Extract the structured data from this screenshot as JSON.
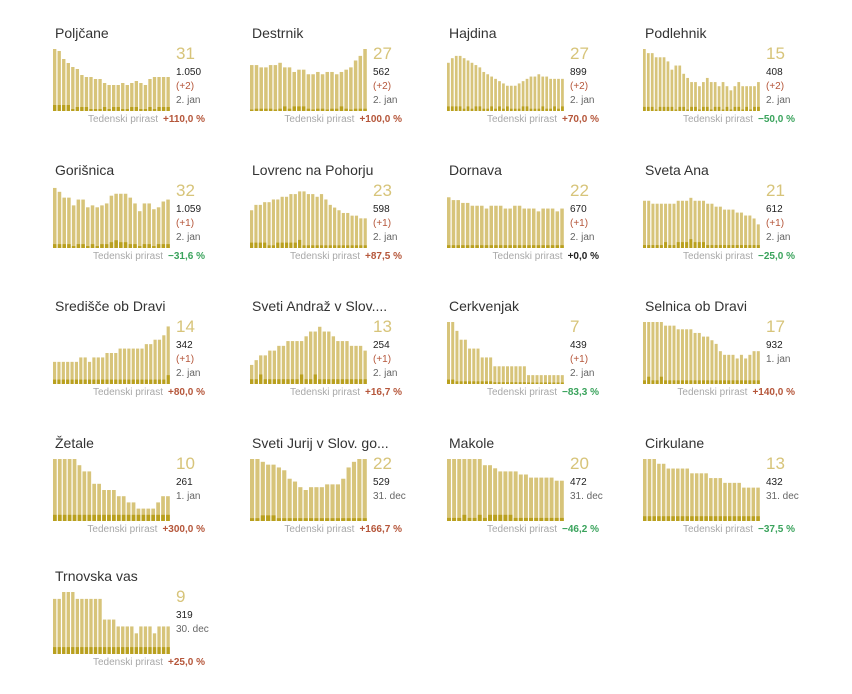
{
  "colors": {
    "bar": "#d7c47a",
    "bar_low": "#b9a01e",
    "big_number": "#d7c47a",
    "positive": "#b5563a",
    "negative": "#3aa35c"
  },
  "chart_data": [
    {
      "type": "bar",
      "title": "Poljčane",
      "value": "31",
      "total": "1.050",
      "diff": "(+2)",
      "date": "2. jan",
      "weekly_label": "Tedenski prirast",
      "weekly_change": "+110,0 %",
      "trend": "pos",
      "values": [
        31,
        30,
        26,
        24,
        22,
        21,
        18,
        17,
        17,
        16,
        16,
        14,
        13,
        13,
        13,
        14,
        13,
        14,
        15,
        14,
        13,
        16,
        17,
        17,
        17,
        17
      ],
      "low": [
        3,
        3,
        3,
        3,
        1,
        2,
        2,
        2,
        1,
        1,
        1,
        2,
        1,
        2,
        2,
        1,
        1,
        2,
        2,
        1,
        1,
        2,
        1,
        2,
        2,
        2
      ],
      "ylim": [
        0,
        31
      ]
    },
    {
      "type": "bar",
      "title": "Destrnik",
      "value": "27",
      "total": "562",
      "diff": "(+2)",
      "date": "2. jan",
      "weekly_label": "Tedenski prirast",
      "weekly_change": "+100,0 %",
      "trend": "pos",
      "values": [
        20,
        20,
        19,
        19,
        20,
        20,
        21,
        19,
        19,
        17,
        18,
        18,
        16,
        16,
        17,
        16,
        17,
        17,
        16,
        17,
        18,
        19,
        22,
        24,
        27
      ],
      "low": [
        0,
        1,
        1,
        1,
        1,
        0,
        1,
        2,
        1,
        2,
        2,
        2,
        1,
        0,
        1,
        1,
        0,
        1,
        1,
        2,
        1,
        0,
        1,
        1,
        1
      ],
      "ylim": [
        0,
        27
      ]
    },
    {
      "type": "bar",
      "title": "Hajdina",
      "value": "27",
      "total": "899",
      "diff": "(+2)",
      "date": "2. jan",
      "weekly_label": "Tedenski prirast",
      "weekly_change": "+70,0 %",
      "trend": "pos",
      "values": [
        21,
        23,
        24,
        24,
        23,
        22,
        21,
        20,
        19,
        17,
        16,
        15,
        14,
        13,
        12,
        11,
        11,
        11,
        12,
        13,
        14,
        15,
        15,
        16,
        15,
        15,
        14,
        14,
        14,
        14
      ],
      "low": [
        2,
        2,
        2,
        2,
        1,
        2,
        1,
        2,
        2,
        1,
        1,
        2,
        1,
        2,
        1,
        2,
        1,
        1,
        1,
        2,
        2,
        1,
        1,
        1,
        2,
        1,
        1,
        2,
        1,
        2
      ],
      "ylim": [
        0,
        27
      ]
    },
    {
      "type": "bar",
      "title": "Podlehnik",
      "value": "15",
      "total": "408",
      "diff": "(+2)",
      "date": "2. jan",
      "weekly_label": "Tedenski prirast",
      "weekly_change": "−50,0 %",
      "trend": "neg",
      "values": [
        15,
        14,
        14,
        13,
        13,
        13,
        12,
        10,
        11,
        11,
        9,
        8,
        7,
        7,
        6,
        7,
        8,
        7,
        7,
        6,
        7,
        6,
        5,
        6,
        7,
        6,
        6,
        6,
        6,
        7
      ],
      "low": [
        1,
        1,
        1,
        0,
        1,
        1,
        1,
        1,
        0,
        1,
        1,
        0,
        1,
        1,
        0,
        1,
        1,
        0,
        1,
        1,
        0,
        1,
        0,
        1,
        1,
        0,
        1,
        0,
        1,
        1
      ],
      "ylim": [
        0,
        15
      ]
    },
    {
      "type": "bar",
      "title": "Gorišnica",
      "value": "32",
      "total": "1.059",
      "diff": "(+1)",
      "date": "2. jan",
      "weekly_label": "Tedenski prirast",
      "weekly_change": "−31,6 %",
      "trend": "neg",
      "values": [
        31,
        29,
        26,
        26,
        22,
        25,
        25,
        21,
        22,
        21,
        22,
        23,
        27,
        28,
        28,
        28,
        26,
        23,
        19,
        23,
        23,
        20,
        21,
        24,
        25
      ],
      "low": [
        2,
        2,
        2,
        2,
        1,
        2,
        2,
        1,
        2,
        1,
        2,
        2,
        3,
        4,
        3,
        3,
        2,
        2,
        1,
        2,
        2,
        1,
        2,
        2,
        2
      ],
      "ylim": [
        0,
        32
      ]
    },
    {
      "type": "bar",
      "title": "Lovrenc na Pohorju",
      "value": "23",
      "total": "598",
      "diff": "(+1)",
      "date": "2. jan",
      "weekly_label": "Tedenski prirast",
      "weekly_change": "+87,5 %",
      "trend": "pos",
      "values": [
        14,
        16,
        16,
        17,
        17,
        18,
        18,
        19,
        19,
        20,
        20,
        21,
        21,
        20,
        20,
        19,
        20,
        18,
        16,
        15,
        14,
        13,
        13,
        12,
        12,
        11,
        11
      ],
      "low": [
        2,
        2,
        2,
        2,
        1,
        1,
        2,
        2,
        2,
        2,
        2,
        3,
        1,
        1,
        1,
        1,
        1,
        1,
        1,
        1,
        1,
        1,
        1,
        1,
        1,
        1,
        1
      ],
      "ylim": [
        0,
        23
      ]
    },
    {
      "type": "bar",
      "title": "Dornava",
      "value": "22",
      "total": "670",
      "diff": "(+1)",
      "date": "2. jan",
      "weekly_label": "Tedenski prirast",
      "weekly_change": "+0,0 %",
      "trend": "zero",
      "values": [
        18,
        17,
        17,
        16,
        16,
        15,
        15,
        15,
        14,
        15,
        15,
        15,
        14,
        14,
        15,
        15,
        14,
        14,
        14,
        13,
        14,
        14,
        14,
        13,
        14
      ],
      "low": [
        1,
        1,
        1,
        1,
        1,
        1,
        1,
        1,
        1,
        1,
        1,
        1,
        1,
        1,
        1,
        1,
        1,
        1,
        1,
        1,
        1,
        1,
        1,
        1,
        1
      ],
      "ylim": [
        0,
        22
      ]
    },
    {
      "type": "bar",
      "title": "Sveta Ana",
      "value": "21",
      "total": "612",
      "diff": "(+1)",
      "date": "2. jan",
      "weekly_label": "Tedenski prirast",
      "weekly_change": "−25,0 %",
      "trend": "neg",
      "values": [
        16,
        16,
        15,
        15,
        15,
        15,
        15,
        15,
        16,
        16,
        16,
        17,
        16,
        16,
        16,
        15,
        15,
        14,
        14,
        13,
        13,
        13,
        12,
        12,
        11,
        11,
        10,
        8
      ],
      "low": [
        1,
        1,
        1,
        1,
        1,
        2,
        1,
        1,
        2,
        2,
        2,
        3,
        2,
        2,
        2,
        1,
        1,
        1,
        1,
        1,
        1,
        1,
        1,
        1,
        1,
        1,
        1,
        1
      ],
      "ylim": [
        0,
        21
      ]
    },
    {
      "type": "bar",
      "title": "Središče ob Dravi",
      "value": "14",
      "total": "342",
      "diff": "(+1)",
      "date": "2. jan",
      "weekly_label": "Tedenski prirast",
      "weekly_change": "+80,0 %",
      "trend": "pos",
      "values": [
        5,
        5,
        5,
        5,
        5,
        5,
        6,
        6,
        5,
        6,
        6,
        6,
        7,
        7,
        7,
        8,
        8,
        8,
        8,
        8,
        8,
        9,
        9,
        10,
        10,
        11,
        13
      ],
      "low": [
        1,
        1,
        1,
        1,
        1,
        1,
        1,
        1,
        1,
        1,
        1,
        1,
        1,
        1,
        1,
        1,
        1,
        1,
        1,
        1,
        1,
        1,
        1,
        1,
        1,
        1,
        2
      ],
      "ylim": [
        0,
        14
      ]
    },
    {
      "type": "bar",
      "title": "Sveti Andraž v Slov....",
      "value": "13",
      "total": "254",
      "diff": "(+1)",
      "date": "2. jan",
      "weekly_label": "Tedenski prirast",
      "weekly_change": "+16,7 %",
      "trend": "pos",
      "values": [
        4,
        5,
        6,
        6,
        7,
        7,
        8,
        8,
        9,
        9,
        9,
        9,
        10,
        11,
        11,
        12,
        11,
        11,
        10,
        9,
        9,
        9,
        8,
        8,
        8,
        7
      ],
      "low": [
        1,
        1,
        2,
        1,
        1,
        1,
        1,
        1,
        1,
        1,
        1,
        2,
        1,
        1,
        2,
        1,
        1,
        1,
        1,
        1,
        1,
        1,
        1,
        1,
        1,
        1
      ],
      "ylim": [
        0,
        13
      ]
    },
    {
      "type": "bar",
      "title": "Cerkvenjak",
      "value": "7",
      "total": "439",
      "diff": "(+1)",
      "date": "2. jan",
      "weekly_label": "Tedenski prirast",
      "weekly_change": "−83,3 %",
      "trend": "neg",
      "values": [
        7,
        7,
        6,
        5,
        5,
        4,
        4,
        4,
        3,
        3,
        3,
        2,
        2,
        2,
        2,
        2,
        2,
        2,
        2,
        1,
        1,
        1,
        1,
        1,
        1,
        1,
        1,
        1
      ],
      "low": [
        0.5,
        0.5,
        0.3,
        0.3,
        0.3,
        0.3,
        0.3,
        0.3,
        0.3,
        0.3,
        0.3,
        0.2,
        0.2,
        0.2,
        0.2,
        0.2,
        0.2,
        0.2,
        0.2,
        0.1,
        0.1,
        0.1,
        0.1,
        0.1,
        0.1,
        0.1,
        0.1,
        0.1
      ],
      "ylim": [
        0,
        7
      ]
    },
    {
      "type": "bar",
      "title": "Selnica ob Dravi",
      "value": "17",
      "total": "932",
      "diff": "",
      "date": "1. jan",
      "weekly_label": "Tedenski prirast",
      "weekly_change": "+140,0 %",
      "trend": "pos",
      "values": [
        17,
        17,
        17,
        17,
        17,
        16,
        16,
        16,
        15,
        15,
        15,
        15,
        14,
        14,
        13,
        13,
        12,
        11,
        9,
        8,
        8,
        8,
        7,
        8,
        7,
        8,
        9,
        9
      ],
      "low": [
        1,
        2,
        1,
        1,
        2,
        1,
        1,
        1,
        1,
        1,
        1,
        1,
        1,
        1,
        1,
        1,
        1,
        1,
        1,
        1,
        1,
        1,
        1,
        1,
        1,
        1,
        1,
        1
      ],
      "ylim": [
        0,
        17
      ]
    },
    {
      "type": "bar",
      "title": "Žetale",
      "value": "10",
      "total": "261",
      "diff": "",
      "date": "1. jan",
      "weekly_label": "Tedenski prirast",
      "weekly_change": "+300,0 %",
      "trend": "pos",
      "values": [
        10,
        10,
        10,
        10,
        10,
        9,
        8,
        8,
        6,
        6,
        5,
        5,
        5,
        4,
        4,
        3,
        3,
        2,
        2,
        2,
        2,
        3,
        4,
        4
      ],
      "low": [
        1,
        1,
        1,
        1,
        1,
        1,
        1,
        1,
        1,
        1,
        1,
        1,
        1,
        1,
        1,
        1,
        1,
        1,
        1,
        1,
        1,
        1,
        1,
        1
      ],
      "ylim": [
        0,
        10
      ]
    },
    {
      "type": "bar",
      "title": "Sveti Jurij v Slov. go...",
      "value": "22",
      "total": "529",
      "diff": "",
      "date": "31. dec",
      "weekly_label": "Tedenski prirast",
      "weekly_change": "+166,7 %",
      "trend": "pos",
      "values": [
        22,
        22,
        21,
        20,
        20,
        19,
        18,
        15,
        14,
        12,
        11,
        12,
        12,
        12,
        13,
        13,
        13,
        15,
        19,
        21,
        22,
        22
      ],
      "low": [
        1,
        1,
        2,
        2,
        2,
        1,
        1,
        1,
        1,
        1,
        1,
        1,
        1,
        1,
        1,
        1,
        1,
        1,
        1,
        1,
        1,
        1
      ],
      "ylim": [
        0,
        22
      ]
    },
    {
      "type": "bar",
      "title": "Makole",
      "value": "20",
      "total": "472",
      "diff": "",
      "date": "31. dec",
      "weekly_label": "Tedenski prirast",
      "weekly_change": "−46,2 %",
      "trend": "neg",
      "values": [
        20,
        20,
        20,
        20,
        20,
        20,
        20,
        18,
        18,
        17,
        16,
        16,
        16,
        16,
        15,
        15,
        14,
        14,
        14,
        14,
        14,
        13,
        13
      ],
      "low": [
        1,
        1,
        1,
        2,
        1,
        1,
        2,
        1,
        2,
        2,
        2,
        2,
        2,
        1,
        1,
        1,
        1,
        1,
        1,
        1,
        1,
        1,
        1
      ],
      "ylim": [
        0,
        20
      ]
    },
    {
      "type": "bar",
      "title": "Cirkulane",
      "value": "13",
      "total": "432",
      "diff": "",
      "date": "31. dec",
      "weekly_label": "Tedenski prirast",
      "weekly_change": "−37,5 %",
      "trend": "neg",
      "values": [
        13,
        13,
        13,
        12,
        12,
        11,
        11,
        11,
        11,
        11,
        10,
        10,
        10,
        10,
        9,
        9,
        9,
        8,
        8,
        8,
        8,
        7,
        7,
        7,
        7
      ],
      "low": [
        1,
        1,
        1,
        1,
        1,
        1,
        1,
        1,
        1,
        1,
        1,
        1,
        1,
        1,
        1,
        1,
        1,
        1,
        1,
        1,
        1,
        1,
        1,
        1,
        1
      ],
      "ylim": [
        0,
        13
      ]
    },
    {
      "type": "bar",
      "title": "Trnovska vas",
      "value": "9",
      "total": "319",
      "diff": "",
      "date": "30. dec",
      "weekly_label": "Tedenski prirast",
      "weekly_change": "+25,0 %",
      "trend": "pos",
      "values": [
        8,
        8,
        9,
        9,
        9,
        8,
        8,
        8,
        8,
        8,
        8,
        5,
        5,
        5,
        4,
        4,
        4,
        4,
        3,
        4,
        4,
        4,
        3,
        4,
        4,
        4
      ],
      "low": [
        1,
        1,
        1,
        1,
        1,
        1,
        1,
        1,
        1,
        1,
        1,
        1,
        1,
        1,
        1,
        1,
        1,
        1,
        1,
        1,
        1,
        1,
        1,
        1,
        1,
        1
      ],
      "ylim": [
        0,
        9
      ]
    }
  ]
}
